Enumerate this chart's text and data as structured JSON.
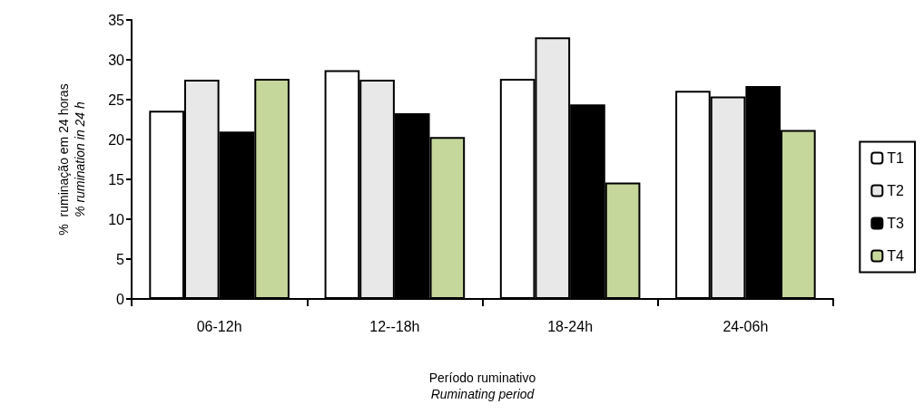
{
  "chart_data": {
    "type": "bar",
    "xlabel": "Período ruminativo\nRuminating period",
    "ylabel": "%  ruminação em 24 horas\n% rumination in 24 h",
    "categories": [
      "06-12h",
      "12--18h",
      "18-24h",
      "24-06h"
    ],
    "series": [
      {
        "name": "T1",
        "color": "#ffffff",
        "values": [
          23.6,
          28.7,
          27.6,
          26.1
        ]
      },
      {
        "name": "T2",
        "color": "#e8e8e8",
        "values": [
          27.5,
          27.5,
          32.8,
          25.4
        ]
      },
      {
        "name": "T3",
        "color": "#000000",
        "values": [
          21.0,
          23.3,
          24.4,
          26.7
        ]
      },
      {
        "name": "T4",
        "color": "#c6d79c",
        "values": [
          27.6,
          20.3,
          14.6,
          21.2
        ]
      }
    ],
    "ylim": [
      0,
      35
    ],
    "yticks": [
      0,
      5,
      10,
      15,
      20,
      25,
      30,
      35
    ],
    "grid": false,
    "legend": "right"
  }
}
